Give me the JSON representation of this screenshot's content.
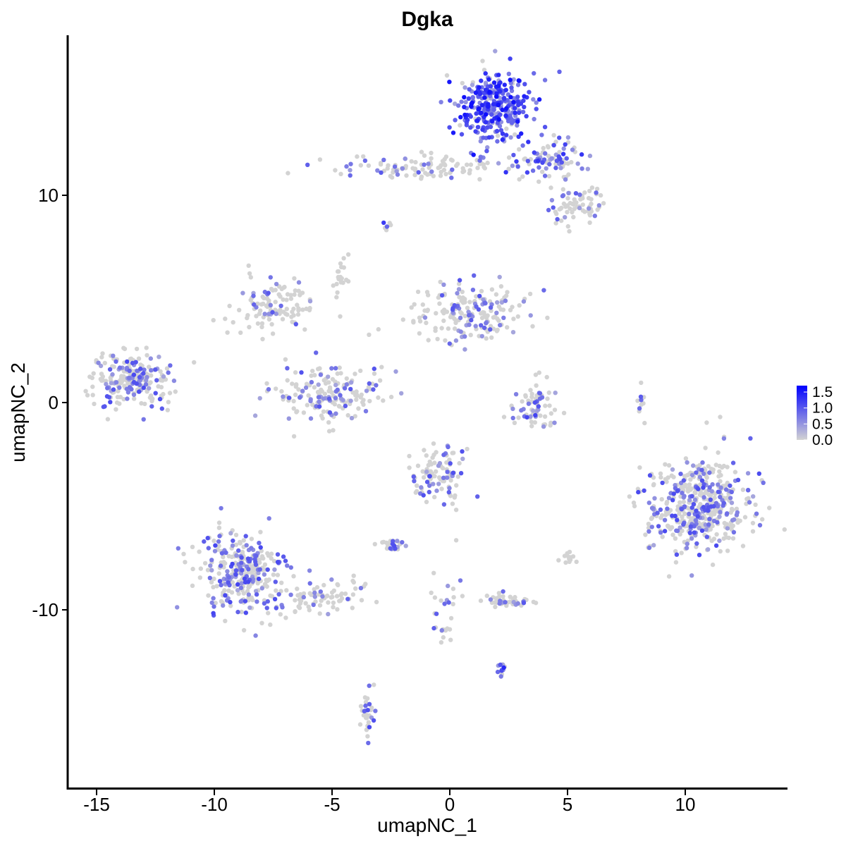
{
  "chart_data": {
    "type": "scatter",
    "title": "Dgka",
    "xlabel": "umapNC_1",
    "ylabel": "umapNC_2",
    "xlim": [
      -16.5,
      14.5
    ],
    "ylim": [
      -18.5,
      17.5
    ],
    "x_ticks": [
      -15,
      -10,
      -5,
      0,
      5,
      10
    ],
    "x_tick_labels": [
      "-15",
      "-10",
      "-5",
      "0",
      "5",
      "10"
    ],
    "y_ticks": [
      -10,
      0,
      10
    ],
    "y_tick_labels": [
      "-10",
      "0",
      "10"
    ],
    "grid": false,
    "legend": {
      "placement": "right",
      "type": "colorbar",
      "range": [
        0,
        1.7
      ],
      "ticks": [
        0.0,
        0.5,
        1.0,
        1.5
      ],
      "tick_labels": [
        "0.0",
        "0.5",
        "1.0",
        "1.5"
      ],
      "low_color": "#d3d3d3",
      "high_color": "#0000ff"
    },
    "clusters": [
      {
        "id": "A",
        "cx": 1.8,
        "cy": 14.3,
        "sx": 1.0,
        "sy": 1.1,
        "n": 320,
        "expr": 0.9
      },
      {
        "id": "B",
        "cx": 4.2,
        "cy": 11.7,
        "sx": 1.0,
        "sy": 0.6,
        "n": 90,
        "expr": 0.55
      },
      {
        "id": "C",
        "cx": -0.8,
        "cy": 11.4,
        "sx": 2.4,
        "sy": 0.4,
        "n": 110,
        "expr": 0.25
      },
      {
        "id": "D",
        "cx": 5.3,
        "cy": 9.5,
        "sx": 0.8,
        "sy": 0.6,
        "n": 70,
        "expr": 0.2
      },
      {
        "id": "E",
        "cx": -13.5,
        "cy": 1.1,
        "sx": 1.0,
        "sy": 0.9,
        "n": 220,
        "expr": 0.35
      },
      {
        "id": "F",
        "cx": -7.4,
        "cy": 4.6,
        "sx": 1.2,
        "sy": 0.8,
        "n": 110,
        "expr": 0.2
      },
      {
        "id": "G",
        "cx": -5.2,
        "cy": 0.4,
        "sx": 1.6,
        "sy": 0.9,
        "n": 180,
        "expr": 0.3
      },
      {
        "id": "H",
        "cx": 0.8,
        "cy": 4.4,
        "sx": 1.7,
        "sy": 1.0,
        "n": 190,
        "expr": 0.25
      },
      {
        "id": "I",
        "cx": 3.6,
        "cy": -0.2,
        "sx": 0.8,
        "sy": 0.8,
        "n": 70,
        "expr": 0.4
      },
      {
        "id": "J",
        "cx": 10.5,
        "cy": -5.0,
        "sx": 1.5,
        "sy": 1.5,
        "n": 480,
        "expr": 0.35
      },
      {
        "id": "K",
        "cx": -8.8,
        "cy": -8.2,
        "sx": 1.2,
        "sy": 1.3,
        "n": 310,
        "expr": 0.4
      },
      {
        "id": "L",
        "cx": -5.3,
        "cy": -9.4,
        "sx": 1.2,
        "sy": 0.6,
        "n": 80,
        "expr": 0.25
      },
      {
        "id": "M",
        "cx": -0.5,
        "cy": -3.5,
        "sx": 0.7,
        "sy": 0.8,
        "n": 100,
        "expr": 0.3
      },
      {
        "id": "N",
        "cx": 2.4,
        "cy": -9.6,
        "sx": 0.6,
        "sy": 0.25,
        "n": 45,
        "expr": 0.35
      },
      {
        "id": "O",
        "cx": -2.5,
        "cy": -6.9,
        "sx": 0.3,
        "sy": 0.25,
        "n": 30,
        "expr": 0.3
      },
      {
        "id": "P",
        "cx": -0.3,
        "cy": -10.5,
        "sx": 0.4,
        "sy": 1.2,
        "n": 30,
        "expr": 0.3
      },
      {
        "id": "Q",
        "cx": -3.4,
        "cy": -15.1,
        "sx": 0.2,
        "sy": 0.8,
        "n": 30,
        "expr": 0.35
      },
      {
        "id": "R",
        "cx": 2.2,
        "cy": -12.8,
        "sx": 0.2,
        "sy": 0.2,
        "n": 12,
        "expr": 0.7
      },
      {
        "id": "S",
        "cx": 8.1,
        "cy": 0.3,
        "sx": 0.15,
        "sy": 0.5,
        "n": 10,
        "expr": 0.3
      },
      {
        "id": "T",
        "cx": -4.7,
        "cy": 6.0,
        "sx": 0.2,
        "sy": 1.0,
        "n": 20,
        "expr": 0.1
      },
      {
        "id": "U",
        "cx": 5.0,
        "cy": -7.5,
        "sx": 0.3,
        "sy": 0.2,
        "n": 12,
        "expr": 0.1
      },
      {
        "id": "V",
        "cx": -2.7,
        "cy": 8.6,
        "sx": 0.1,
        "sy": 0.2,
        "n": 6,
        "expr": 0.5
      },
      {
        "id": "W",
        "cx": -1.5,
        "cy": -11.5,
        "sx": 1.5,
        "sy": 1.8,
        "n": 0,
        "expr": 0.0
      }
    ]
  }
}
